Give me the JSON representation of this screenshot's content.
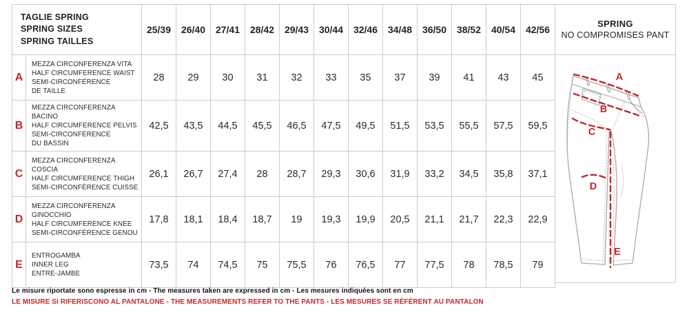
{
  "header": {
    "corner_lines": [
      "TAGLIE SPRING",
      "SPRING SIZES",
      "SPRING TAILLES"
    ],
    "sizes": [
      "25/39",
      "26/40",
      "27/41",
      "28/42",
      "29/43",
      "30/44",
      "32/46",
      "34/48",
      "36/50",
      "38/52",
      "40/54",
      "42/56"
    ],
    "product_title": "SPRING",
    "product_subtitle": "NO COMPROMISES PANT"
  },
  "rows": [
    {
      "letter": "A",
      "desc_lines": [
        "MEZZA CIRCONFERENZA VITA",
        "HALF CIRCUMFERENCE WAIST",
        "SEMI-CIRCONFÉRENCE",
        "DE TAILLE"
      ],
      "values": [
        "28",
        "29",
        "30",
        "31",
        "32",
        "33",
        "35",
        "37",
        "39",
        "41",
        "43",
        "45"
      ]
    },
    {
      "letter": "B",
      "desc_lines": [
        "MEZZA CIRCONFERENZA BACINO",
        "HALF CIRCUMFERENCE PELVIS",
        "SEMI-CIRCONFÉRENCE",
        "DU BASSIN"
      ],
      "values": [
        "42,5",
        "43,5",
        "44,5",
        "45,5",
        "46,5",
        "47,5",
        "49,5",
        "51,5",
        "53,5",
        "55,5",
        "57,5",
        "59,5"
      ]
    },
    {
      "letter": "C",
      "desc_lines": [
        "MEZZA CIRCONFERENZA COSCIA",
        "HALF CIRCUMFERENCE THIGH",
        "SEMI-CIRCONFÉRENCE CUISSE"
      ],
      "values": [
        "26,1",
        "26,7",
        "27,4",
        "28",
        "28,7",
        "29,3",
        "30,6",
        "31,9",
        "33,2",
        "34,5",
        "35,8",
        "37,1"
      ]
    },
    {
      "letter": "D",
      "desc_lines": [
        "MEZZA CIRCONFERENZA",
        "GINOCCHIO",
        "HALF CIRCUMFERENCE KNEE",
        "SEMI-CIRCONFÉRENCE GENOU"
      ],
      "values": [
        "17,8",
        "18,1",
        "18,4",
        "18,7",
        "19",
        "19,3",
        "19,9",
        "20,5",
        "21,1",
        "21,7",
        "22,3",
        "22,9"
      ]
    },
    {
      "letter": "E",
      "desc_lines": [
        "ENTROGAMBA",
        "INNER LEG",
        "ENTRE-JAMBE"
      ],
      "values": [
        "73,5",
        "74",
        "74,5",
        "75",
        "75,5",
        "76",
        "76,5",
        "77",
        "77,5",
        "78",
        "78,5",
        "79"
      ]
    }
  ],
  "diagram": {
    "labels": [
      "A",
      "B",
      "C",
      "D",
      "E"
    ]
  },
  "footer": {
    "line1": "Le misure riportate sono espresse in cm - The measures taken are expressed in cm - Les mesures indiquées sont en cm",
    "line2": "LE MISURE SI RIFERISCONO AL PANTALONE - THE MEASUREMENTS REFER TO THE PANTS - LES MESURES SE RÉFÉRENT AU PANTALON"
  },
  "colors": {
    "accent_red": "#c1272d",
    "border": "#cccccc",
    "text": "#232323"
  }
}
